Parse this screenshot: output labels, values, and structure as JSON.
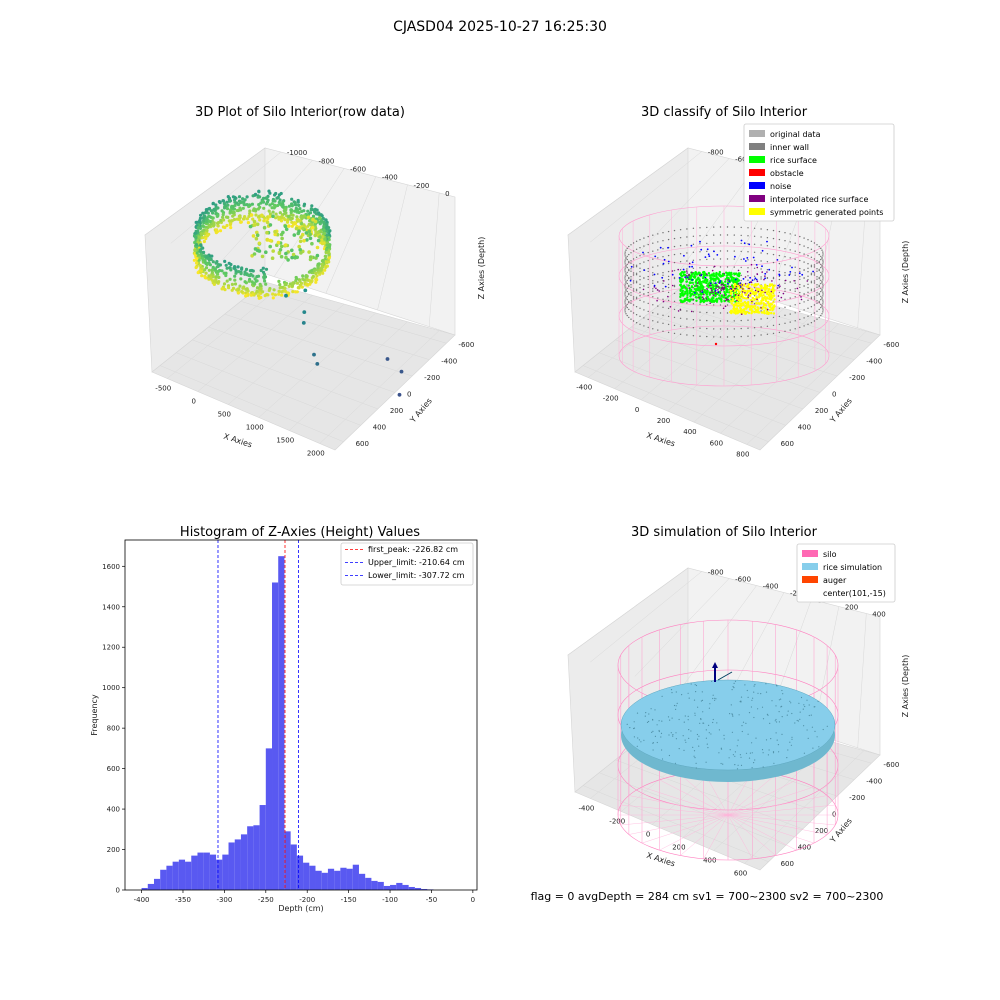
{
  "suptitle": "CJASD04 2025-10-27 16:25:30",
  "status_text": "flag = 0     avgDepth = 284 cm  sv1 = 700~2300  sv2 = 700~2300",
  "chart_data": [
    {
      "type": "scatter",
      "projection": "3d",
      "title": "3D Plot of Silo Interior(row data)",
      "xlabel": "X Axies",
      "ylabel": "Y Axies",
      "zlabel": "Z Axies (Depth)",
      "x_ticks": [
        "-500",
        "0",
        "500",
        "1000",
        "1500",
        "2000"
      ],
      "y_ticks": [
        "-600",
        "-400",
        "-200",
        "0",
        "200",
        "400",
        "600"
      ],
      "z_ticks": [
        "0",
        "-200",
        "-400",
        "-600",
        "-800",
        "-1000"
      ],
      "colormap": "viridis",
      "outliers": [
        {
          "x": 600,
          "y": 100,
          "z": -500
        },
        {
          "x": 800,
          "y": 150,
          "z": -450
        },
        {
          "x": 900,
          "y": 50,
          "z": -550
        },
        {
          "x": 950,
          "y": 0,
          "z": -600
        },
        {
          "x": 1200,
          "y": -100,
          "z": -750
        },
        {
          "x": 1300,
          "y": -150,
          "z": -780
        },
        {
          "x": 1500,
          "y": 500,
          "z": -1000
        },
        {
          "x": 1800,
          "y": 400,
          "z": -1000
        },
        {
          "x": 2000,
          "y": 200,
          "z": -1050
        }
      ]
    },
    {
      "type": "scatter",
      "projection": "3d",
      "title": "3D classify of Silo Interior",
      "xlabel": "X Axies",
      "ylabel": "Y Axies",
      "zlabel": "Z Axies (Depth)",
      "x_ticks": [
        "-400",
        "-200",
        "0",
        "200",
        "400",
        "600",
        "800"
      ],
      "y_ticks": [
        "-600",
        "-400",
        "-200",
        "0",
        "200",
        "400",
        "600"
      ],
      "z_ticks": [
        "400",
        "200",
        "0",
        "-200",
        "-400",
        "-600",
        "-800"
      ],
      "legend_position": "top-right",
      "legend": [
        {
          "label": "original data",
          "color": "#b0b0b0"
        },
        {
          "label": "inner wall",
          "color": "#808080"
        },
        {
          "label": "rice surface",
          "color": "#00ff00"
        },
        {
          "label": "obstacle",
          "color": "#ff0000"
        },
        {
          "label": "noise",
          "color": "#0000ff"
        },
        {
          "label": "interpolated rice surface",
          "color": "#800080"
        },
        {
          "label": "symmetric generated points",
          "color": "#ffff00"
        }
      ]
    },
    {
      "type": "bar",
      "title": "Histogram of Z-Axies (Height) Values",
      "xlabel": "Depth (cm)",
      "ylabel": "Frequency",
      "xlim": [
        -420,
        5
      ],
      "ylim": [
        0,
        1730
      ],
      "x_ticks": [
        -400,
        -350,
        -300,
        -250,
        -200,
        -150,
        -100,
        -50,
        0
      ],
      "y_ticks": [
        0,
        200,
        400,
        600,
        800,
        1000,
        1200,
        1400,
        1600
      ],
      "bar_color": "#5050f0",
      "bin_start": -400,
      "bin_width": 7.5,
      "values": [
        10,
        30,
        55,
        100,
        120,
        140,
        150,
        140,
        170,
        185,
        185,
        175,
        150,
        175,
        235,
        250,
        275,
        315,
        320,
        420,
        700,
        1520,
        1650,
        290,
        225,
        170,
        135,
        120,
        95,
        85,
        105,
        95,
        110,
        105,
        125,
        80,
        60,
        45,
        40,
        20,
        25,
        35,
        25,
        15,
        10,
        5,
        3
      ],
      "vlines": [
        {
          "label": "first_peak: -226.82 cm",
          "x": -226.82,
          "color": "#ff0000"
        },
        {
          "label": "Upper_limit: -210.64 cm",
          "x": -210.64,
          "color": "#0000ff"
        },
        {
          "label": "Lower_limit: -307.72 cm",
          "x": -307.72,
          "color": "#0000ff"
        }
      ],
      "legend_position": "top-right"
    },
    {
      "type": "scatter",
      "projection": "3d",
      "title": "3D simulation of Silo Interior",
      "xlabel": "X Axies",
      "ylabel": "Y Axies",
      "zlabel": "Z Axies (Depth)",
      "x_ticks": [
        "-400",
        "-200",
        "0",
        "200",
        "400",
        "600"
      ],
      "y_ticks": [
        "-600",
        "-400",
        "-200",
        "0",
        "200",
        "400",
        "600"
      ],
      "z_ticks": [
        "400",
        "200",
        "0",
        "-200",
        "-400",
        "-600",
        "-800"
      ],
      "legend_position": "top-right",
      "legend": [
        {
          "label": "silo",
          "color": "#ff69b4"
        },
        {
          "label": "rice simulation",
          "color": "#87ceeb"
        },
        {
          "label": "auger",
          "color": "#ff4500"
        },
        {
          "label": "center(101,-15)",
          "color": ""
        }
      ]
    }
  ]
}
